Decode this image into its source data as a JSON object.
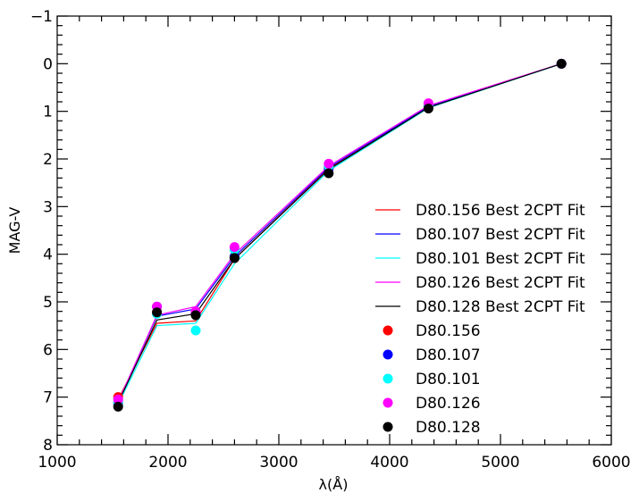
{
  "chart_data": {
    "type": "line",
    "title": "",
    "xlabel": "λ(Å)",
    "ylabel": "MAG-V",
    "xlim": [
      1000,
      6000
    ],
    "ylim": [
      -1,
      8
    ],
    "y_inverted": true,
    "grid": false,
    "legend_position": "lower-right",
    "x_ticks": [
      "1000",
      "2000",
      "3000",
      "4000",
      "5000",
      "6000"
    ],
    "y_ticks": [
      "−1",
      "0",
      "1",
      "2",
      "3",
      "4",
      "5",
      "6",
      "7",
      "8"
    ],
    "x": [
      1550,
      1900,
      2250,
      2600,
      3450,
      4350,
      5550
    ],
    "fit_series": [
      {
        "name": "D80.156 Best 2CPT Fit",
        "color": "#ff0000",
        "values": [
          7.05,
          5.45,
          5.4,
          4.1,
          2.2,
          0.9,
          0.0
        ]
      },
      {
        "name": "D80.107 Best 2CPT Fit",
        "color": "#0000ff",
        "values": [
          7.1,
          5.3,
          5.15,
          4.05,
          2.18,
          0.9,
          0.0
        ]
      },
      {
        "name": "D80.101 Best 2CPT Fit",
        "color": "#00ffff",
        "values": [
          7.15,
          5.5,
          5.45,
          4.2,
          2.25,
          0.93,
          0.0
        ]
      },
      {
        "name": "D80.126 Best 2CPT Fit",
        "color": "#ff00ff",
        "values": [
          7.1,
          5.28,
          5.1,
          4.0,
          2.15,
          0.88,
          0.0
        ]
      },
      {
        "name": "D80.128 Best 2CPT Fit",
        "color": "#000000",
        "values": [
          7.12,
          5.38,
          5.25,
          4.1,
          2.22,
          0.92,
          0.0
        ]
      }
    ],
    "point_series": [
      {
        "name": "D80.156",
        "color": "#ff0000",
        "values": [
          7.0,
          5.22,
          5.25,
          4.08,
          2.18,
          0.88,
          0.0
        ]
      },
      {
        "name": "D80.107",
        "color": "#0000ff",
        "values": [
          7.12,
          5.1,
          5.23,
          4.05,
          2.2,
          0.9,
          0.0
        ]
      },
      {
        "name": "D80.101",
        "color": "#00ffff",
        "values": [
          7.1,
          5.25,
          5.6,
          3.9,
          2.15,
          0.86,
          0.0
        ]
      },
      {
        "name": "D80.126",
        "color": "#ff00ff",
        "values": [
          7.05,
          5.1,
          5.2,
          3.85,
          2.1,
          0.83,
          0.0
        ]
      },
      {
        "name": "D80.128",
        "color": "#000000",
        "values": [
          7.2,
          5.22,
          5.28,
          4.08,
          2.3,
          0.94,
          0.0
        ]
      }
    ]
  }
}
